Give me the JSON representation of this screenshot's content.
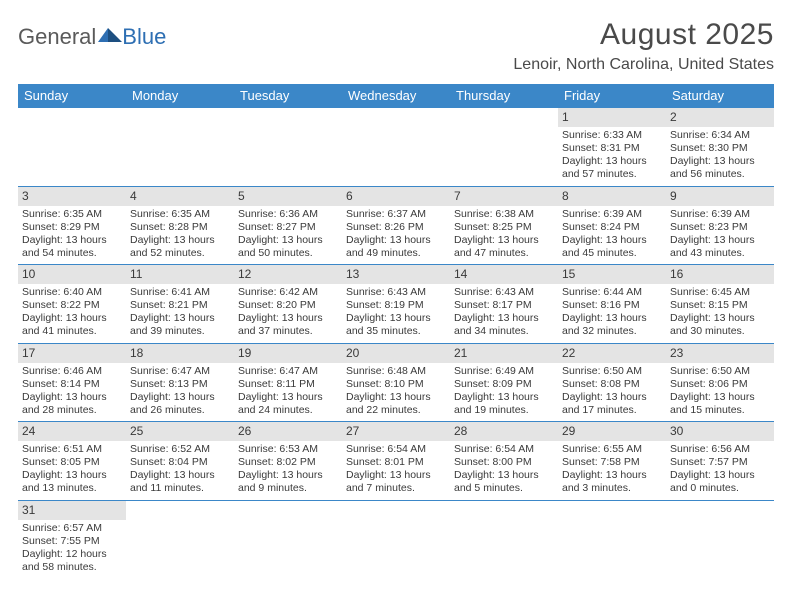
{
  "logo": {
    "text1": "General",
    "text2": "Blue"
  },
  "title": "August 2025",
  "location": "Lenoir, North Carolina, United States",
  "colors": {
    "header_bg": "#3b87c8",
    "header_text": "#ffffff",
    "daynum_bg": "#e4e4e4",
    "text": "#3a3a3a",
    "rule": "#3b87c8",
    "logo_text": "#5a5a5a",
    "logo_accent": "#2e6fb3"
  },
  "day_names": [
    "Sunday",
    "Monday",
    "Tuesday",
    "Wednesday",
    "Thursday",
    "Friday",
    "Saturday"
  ],
  "weeks": [
    [
      null,
      null,
      null,
      null,
      null,
      {
        "n": "1",
        "sr": "Sunrise: 6:33 AM",
        "ss": "Sunset: 8:31 PM",
        "dl1": "Daylight: 13 hours",
        "dl2": "and 57 minutes."
      },
      {
        "n": "2",
        "sr": "Sunrise: 6:34 AM",
        "ss": "Sunset: 8:30 PM",
        "dl1": "Daylight: 13 hours",
        "dl2": "and 56 minutes."
      }
    ],
    [
      {
        "n": "3",
        "sr": "Sunrise: 6:35 AM",
        "ss": "Sunset: 8:29 PM",
        "dl1": "Daylight: 13 hours",
        "dl2": "and 54 minutes."
      },
      {
        "n": "4",
        "sr": "Sunrise: 6:35 AM",
        "ss": "Sunset: 8:28 PM",
        "dl1": "Daylight: 13 hours",
        "dl2": "and 52 minutes."
      },
      {
        "n": "5",
        "sr": "Sunrise: 6:36 AM",
        "ss": "Sunset: 8:27 PM",
        "dl1": "Daylight: 13 hours",
        "dl2": "and 50 minutes."
      },
      {
        "n": "6",
        "sr": "Sunrise: 6:37 AM",
        "ss": "Sunset: 8:26 PM",
        "dl1": "Daylight: 13 hours",
        "dl2": "and 49 minutes."
      },
      {
        "n": "7",
        "sr": "Sunrise: 6:38 AM",
        "ss": "Sunset: 8:25 PM",
        "dl1": "Daylight: 13 hours",
        "dl2": "and 47 minutes."
      },
      {
        "n": "8",
        "sr": "Sunrise: 6:39 AM",
        "ss": "Sunset: 8:24 PM",
        "dl1": "Daylight: 13 hours",
        "dl2": "and 45 minutes."
      },
      {
        "n": "9",
        "sr": "Sunrise: 6:39 AM",
        "ss": "Sunset: 8:23 PM",
        "dl1": "Daylight: 13 hours",
        "dl2": "and 43 minutes."
      }
    ],
    [
      {
        "n": "10",
        "sr": "Sunrise: 6:40 AM",
        "ss": "Sunset: 8:22 PM",
        "dl1": "Daylight: 13 hours",
        "dl2": "and 41 minutes."
      },
      {
        "n": "11",
        "sr": "Sunrise: 6:41 AM",
        "ss": "Sunset: 8:21 PM",
        "dl1": "Daylight: 13 hours",
        "dl2": "and 39 minutes."
      },
      {
        "n": "12",
        "sr": "Sunrise: 6:42 AM",
        "ss": "Sunset: 8:20 PM",
        "dl1": "Daylight: 13 hours",
        "dl2": "and 37 minutes."
      },
      {
        "n": "13",
        "sr": "Sunrise: 6:43 AM",
        "ss": "Sunset: 8:19 PM",
        "dl1": "Daylight: 13 hours",
        "dl2": "and 35 minutes."
      },
      {
        "n": "14",
        "sr": "Sunrise: 6:43 AM",
        "ss": "Sunset: 8:17 PM",
        "dl1": "Daylight: 13 hours",
        "dl2": "and 34 minutes."
      },
      {
        "n": "15",
        "sr": "Sunrise: 6:44 AM",
        "ss": "Sunset: 8:16 PM",
        "dl1": "Daylight: 13 hours",
        "dl2": "and 32 minutes."
      },
      {
        "n": "16",
        "sr": "Sunrise: 6:45 AM",
        "ss": "Sunset: 8:15 PM",
        "dl1": "Daylight: 13 hours",
        "dl2": "and 30 minutes."
      }
    ],
    [
      {
        "n": "17",
        "sr": "Sunrise: 6:46 AM",
        "ss": "Sunset: 8:14 PM",
        "dl1": "Daylight: 13 hours",
        "dl2": "and 28 minutes."
      },
      {
        "n": "18",
        "sr": "Sunrise: 6:47 AM",
        "ss": "Sunset: 8:13 PM",
        "dl1": "Daylight: 13 hours",
        "dl2": "and 26 minutes."
      },
      {
        "n": "19",
        "sr": "Sunrise: 6:47 AM",
        "ss": "Sunset: 8:11 PM",
        "dl1": "Daylight: 13 hours",
        "dl2": "and 24 minutes."
      },
      {
        "n": "20",
        "sr": "Sunrise: 6:48 AM",
        "ss": "Sunset: 8:10 PM",
        "dl1": "Daylight: 13 hours",
        "dl2": "and 22 minutes."
      },
      {
        "n": "21",
        "sr": "Sunrise: 6:49 AM",
        "ss": "Sunset: 8:09 PM",
        "dl1": "Daylight: 13 hours",
        "dl2": "and 19 minutes."
      },
      {
        "n": "22",
        "sr": "Sunrise: 6:50 AM",
        "ss": "Sunset: 8:08 PM",
        "dl1": "Daylight: 13 hours",
        "dl2": "and 17 minutes."
      },
      {
        "n": "23",
        "sr": "Sunrise: 6:50 AM",
        "ss": "Sunset: 8:06 PM",
        "dl1": "Daylight: 13 hours",
        "dl2": "and 15 minutes."
      }
    ],
    [
      {
        "n": "24",
        "sr": "Sunrise: 6:51 AM",
        "ss": "Sunset: 8:05 PM",
        "dl1": "Daylight: 13 hours",
        "dl2": "and 13 minutes."
      },
      {
        "n": "25",
        "sr": "Sunrise: 6:52 AM",
        "ss": "Sunset: 8:04 PM",
        "dl1": "Daylight: 13 hours",
        "dl2": "and 11 minutes."
      },
      {
        "n": "26",
        "sr": "Sunrise: 6:53 AM",
        "ss": "Sunset: 8:02 PM",
        "dl1": "Daylight: 13 hours",
        "dl2": "and 9 minutes."
      },
      {
        "n": "27",
        "sr": "Sunrise: 6:54 AM",
        "ss": "Sunset: 8:01 PM",
        "dl1": "Daylight: 13 hours",
        "dl2": "and 7 minutes."
      },
      {
        "n": "28",
        "sr": "Sunrise: 6:54 AM",
        "ss": "Sunset: 8:00 PM",
        "dl1": "Daylight: 13 hours",
        "dl2": "and 5 minutes."
      },
      {
        "n": "29",
        "sr": "Sunrise: 6:55 AM",
        "ss": "Sunset: 7:58 PM",
        "dl1": "Daylight: 13 hours",
        "dl2": "and 3 minutes."
      },
      {
        "n": "30",
        "sr": "Sunrise: 6:56 AM",
        "ss": "Sunset: 7:57 PM",
        "dl1": "Daylight: 13 hours",
        "dl2": "and 0 minutes."
      }
    ],
    [
      {
        "n": "31",
        "sr": "Sunrise: 6:57 AM",
        "ss": "Sunset: 7:55 PM",
        "dl1": "Daylight: 12 hours",
        "dl2": "and 58 minutes."
      },
      null,
      null,
      null,
      null,
      null,
      null
    ]
  ]
}
